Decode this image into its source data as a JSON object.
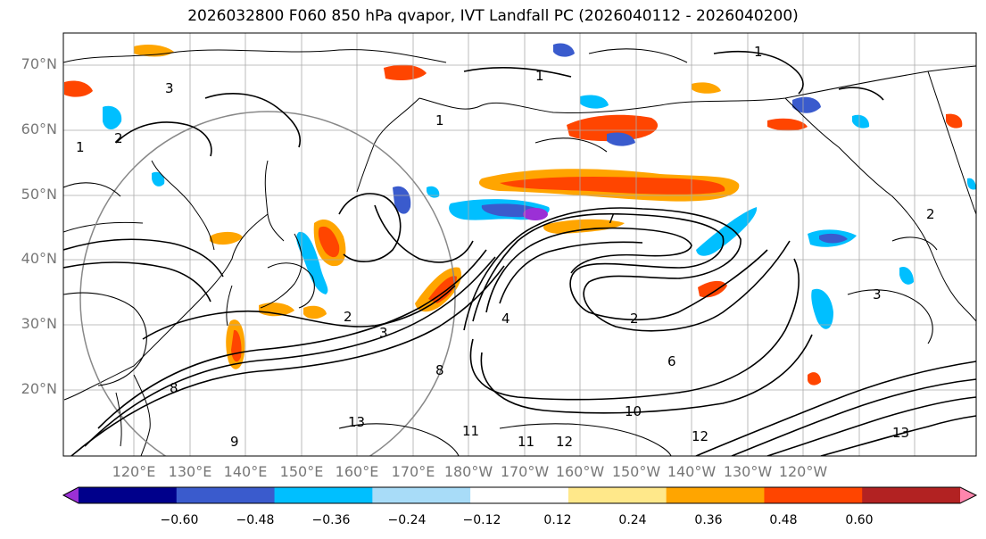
{
  "title": "2026032800 F060 850 hPa qvapor, IVT Landfall PC (2026040112 - 2026040200)",
  "lat_labels": [
    "70°N",
    "60°N",
    "50°N",
    "40°N",
    "30°N",
    "20°N"
  ],
  "lon_labels": [
    "120°E",
    "130°E",
    "140°E",
    "150°E",
    "160°E",
    "170°E",
    "180°W",
    "170°W",
    "160°W",
    "150°W",
    "140°W",
    "130°W",
    "120°W"
  ],
  "contour_labels": [
    "1",
    "1",
    "1",
    "1",
    "2",
    "2",
    "2",
    "2",
    "3",
    "3",
    "3",
    "4",
    "6",
    "7",
    "8",
    "8",
    "9",
    "10",
    "11",
    "11",
    "12",
    "12",
    "13",
    "13"
  ],
  "colorbar": {
    "tick_labels": [
      "−0.60",
      "−0.48",
      "−0.36",
      "−0.24",
      "−0.12",
      "0.12",
      "0.24",
      "0.36",
      "0.48",
      "0.60"
    ],
    "colors": [
      "#9b30d6",
      "#00008b",
      "#3a5bcd",
      "#00bfff",
      "#a8dcf8",
      "#ffffff",
      "#ffe88a",
      "#ffa500",
      "#ff4500",
      "#b22222",
      "#ff85ad"
    ]
  }
}
